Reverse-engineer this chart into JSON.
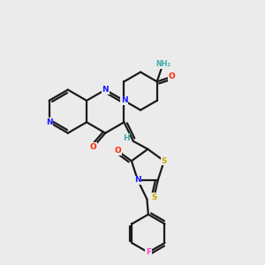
{
  "bg": "#ebebeb",
  "C": "#1a1a1a",
  "N": "#1a1aff",
  "O": "#ff2200",
  "S": "#ccaa00",
  "F": "#ff44cc",
  "H": "#44aaaa",
  "lw": 1.6,
  "figsize": [
    3.0,
    3.0
  ],
  "dpi": 100
}
